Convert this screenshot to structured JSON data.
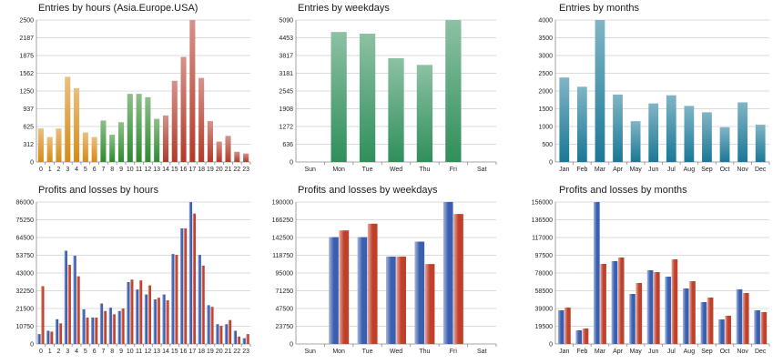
{
  "chart_data": [
    {
      "type": "bar",
      "title": "Entries by hours (Asia.Europe.USA)",
      "categories": [
        "0",
        "1",
        "2",
        "3",
        "4",
        "5",
        "6",
        "7",
        "8",
        "9",
        "10",
        "11",
        "12",
        "13",
        "14",
        "15",
        "16",
        "17",
        "18",
        "19",
        "20",
        "21",
        "22",
        "23"
      ],
      "values": [
        590,
        440,
        590,
        1500,
        1300,
        520,
        440,
        730,
        480,
        700,
        1200,
        1200,
        1140,
        760,
        820,
        1430,
        1850,
        2500,
        1480,
        720,
        360,
        460,
        180,
        150
      ],
      "ylim": [
        0,
        2500
      ],
      "yticks": [
        "0",
        "312",
        "625",
        "937",
        "1250",
        "1562",
        "1875",
        "2187",
        "2500"
      ],
      "colors": [
        "#d88a14",
        "#d88a14",
        "#d88a14",
        "#d88a14",
        "#d88a14",
        "#d88a14",
        "#d88a14",
        "#2f8a2f",
        "#2f8a2f",
        "#2f8a2f",
        "#2f8a2f",
        "#2f8a2f",
        "#2f8a2f",
        "#2f8a2f",
        "#b23a2a",
        "#b23a2a",
        "#b23a2a",
        "#b23a2a",
        "#b23a2a",
        "#b23a2a",
        "#b23a2a",
        "#b23a2a",
        "#b23a2a",
        "#b23a2a"
      ],
      "grid": true
    },
    {
      "type": "bar",
      "title": "Entries by weekdays",
      "categories": [
        "Sun",
        "Mon",
        "Tue",
        "Wed",
        "Thu",
        "Fri",
        "Sat"
      ],
      "values": [
        0,
        4660,
        4600,
        3720,
        3480,
        5090,
        0
      ],
      "ylim": [
        0,
        5090
      ],
      "yticks": [
        "0",
        "636",
        "1272",
        "1908",
        "2545",
        "3181",
        "3817",
        "4453",
        "5090"
      ],
      "colors": [
        "#2f8f5a",
        "#2f8f5a",
        "#2f8f5a",
        "#2f8f5a",
        "#2f8f5a",
        "#2f8f5a",
        "#2f8f5a"
      ],
      "grid": true
    },
    {
      "type": "bar",
      "title": "Entries by months",
      "categories": [
        "Jan",
        "Feb",
        "Mar",
        "Apr",
        "May",
        "Jun",
        "Jul",
        "Aug",
        "Sep",
        "Oct",
        "Nov",
        "Dec"
      ],
      "values": [
        2380,
        2120,
        4000,
        1900,
        1150,
        1650,
        1880,
        1580,
        1400,
        980,
        1680,
        1050
      ],
      "ylim": [
        0,
        4000
      ],
      "yticks": [
        "0",
        "500",
        "1000",
        "1500",
        "2000",
        "2500",
        "3000",
        "3500",
        "4000"
      ],
      "colors": [
        "#1a7896",
        "#1a7896",
        "#1a7896",
        "#1a7896",
        "#1a7896",
        "#1a7896",
        "#1a7896",
        "#1a7896",
        "#1a7896",
        "#1a7896",
        "#1a7896",
        "#1a7896"
      ],
      "grid": true
    },
    {
      "type": "bar",
      "title": "Profits and losses by hours",
      "categories": [
        "0",
        "1",
        "2",
        "3",
        "4",
        "5",
        "6",
        "7",
        "8",
        "9",
        "10",
        "11",
        "12",
        "13",
        "14",
        "15",
        "16",
        "17",
        "18",
        "19",
        "20",
        "21",
        "22",
        "23"
      ],
      "series": [
        {
          "values": [
            6000,
            8000,
            15000,
            56500,
            53500,
            21000,
            16000,
            24500,
            22000,
            20000,
            37500,
            33000,
            30000,
            27000,
            30000,
            54500,
            70000,
            86000,
            54000,
            23500,
            12000,
            12000,
            8000,
            3500
          ]
        },
        {
          "values": [
            35000,
            7500,
            12500,
            48000,
            41000,
            16000,
            16000,
            20000,
            18000,
            21500,
            39000,
            38500,
            35500,
            28000,
            26500,
            54000,
            70000,
            79000,
            47500,
            22500,
            11000,
            14500,
            4500,
            6000
          ]
        }
      ],
      "ylim": [
        0,
        86000
      ],
      "yticks": [
        "0",
        "10750",
        "21500",
        "32250",
        "43000",
        "53750",
        "64500",
        "75250",
        "86000"
      ],
      "colors": [
        "#3b5fb0",
        "#c0402a"
      ],
      "grid": true
    },
    {
      "type": "bar",
      "title": "Profits and losses by weekdays",
      "categories": [
        "Sun",
        "Mon",
        "Tue",
        "Wed",
        "Thu",
        "Fri",
        "Sat"
      ],
      "series": [
        {
          "values": [
            0,
            143000,
            143000,
            117000,
            137000,
            190000,
            0
          ]
        },
        {
          "values": [
            0,
            152000,
            161000,
            117000,
            107000,
            174000,
            0
          ]
        }
      ],
      "ylim": [
        0,
        190000
      ],
      "yticks": [
        "0",
        "23750",
        "47500",
        "71250",
        "95000",
        "118750",
        "142500",
        "166250",
        "190000"
      ],
      "colors": [
        "#3b5fb0",
        "#c0402a"
      ],
      "grid": true
    },
    {
      "type": "bar",
      "title": "Profits and losses by months",
      "categories": [
        "Jan",
        "Feb",
        "Mar",
        "Apr",
        "May",
        "Jun",
        "Jul",
        "Aug",
        "Sep",
        "Oct",
        "Nov",
        "Dec"
      ],
      "series": [
        {
          "values": [
            37000,
            15000,
            156000,
            91000,
            55000,
            81000,
            74000,
            61000,
            46000,
            27000,
            60000,
            37000
          ]
        },
        {
          "values": [
            40000,
            17000,
            88000,
            95000,
            67000,
            79000,
            93000,
            69000,
            51000,
            31000,
            56000,
            35000
          ]
        }
      ],
      "ylim": [
        0,
        156000
      ],
      "yticks": [
        "0",
        "19500",
        "39000",
        "58500",
        "78000",
        "97500",
        "117000",
        "136500",
        "156000"
      ],
      "colors": [
        "#3b5fb0",
        "#c0402a"
      ],
      "grid": true
    }
  ]
}
